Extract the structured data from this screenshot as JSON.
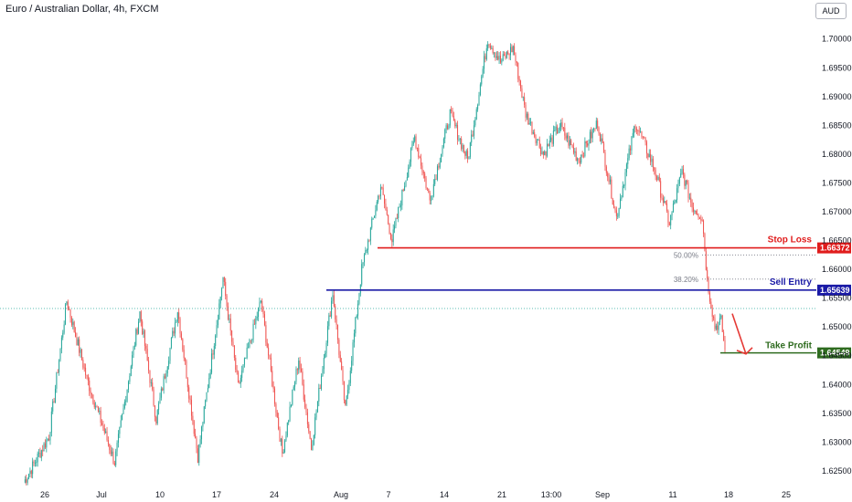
{
  "header": {
    "title": "Euro / Australian Dollar, 4h, FXCM",
    "currency_button": "AUD"
  },
  "colors": {
    "up": "#26a69a",
    "down": "#ef5350",
    "stop": "#e01c1c",
    "entry": "#1a1aa6",
    "target": "#2e6b1f",
    "arrow": "#e53935",
    "fib": "#787b86"
  },
  "chart_data": {
    "type": "candlestick",
    "ylim": [
      1.6215,
      1.7055
    ],
    "y_ticks": [
      "1.62500",
      "1.63000",
      "1.63500",
      "1.64000",
      "1.64500",
      "1.65000",
      "1.65500",
      "1.66000",
      "1.66500",
      "1.67000",
      "1.67500",
      "1.68000",
      "1.68500",
      "1.69000",
      "1.69500",
      "1.70000"
    ],
    "x_ticks": [
      "26",
      "Jul",
      "10",
      "17",
      "24",
      "Aug",
      "7",
      "14",
      "21",
      "13:00",
      "Sep",
      "11",
      "18",
      "25"
    ],
    "key_points": [
      {
        "i": 0,
        "p": 1.623
      },
      {
        "i": 20,
        "p": 1.631
      },
      {
        "i": 34,
        "p": 1.6545
      },
      {
        "i": 50,
        "p": 1.641
      },
      {
        "i": 72,
        "p": 1.6265
      },
      {
        "i": 92,
        "p": 1.6525
      },
      {
        "i": 105,
        "p": 1.634
      },
      {
        "i": 122,
        "p": 1.653
      },
      {
        "i": 138,
        "p": 1.6275
      },
      {
        "i": 158,
        "p": 1.6585
      },
      {
        "i": 170,
        "p": 1.6395
      },
      {
        "i": 188,
        "p": 1.6545
      },
      {
        "i": 205,
        "p": 1.628
      },
      {
        "i": 218,
        "p": 1.6445
      },
      {
        "i": 228,
        "p": 1.629
      },
      {
        "i": 245,
        "p": 1.656
      },
      {
        "i": 255,
        "p": 1.6355
      },
      {
        "i": 268,
        "p": 1.66
      },
      {
        "i": 283,
        "p": 1.6745
      },
      {
        "i": 292,
        "p": 1.665
      },
      {
        "i": 310,
        "p": 1.683
      },
      {
        "i": 322,
        "p": 1.672
      },
      {
        "i": 338,
        "p": 1.687
      },
      {
        "i": 352,
        "p": 1.679
      },
      {
        "i": 368,
        "p": 1.7
      },
      {
        "i": 378,
        "p": 1.696
      },
      {
        "i": 388,
        "p": 1.6985
      },
      {
        "i": 398,
        "p": 1.687
      },
      {
        "i": 412,
        "p": 1.68
      },
      {
        "i": 425,
        "p": 1.685
      },
      {
        "i": 440,
        "p": 1.679
      },
      {
        "i": 455,
        "p": 1.6855
      },
      {
        "i": 470,
        "p": 1.669
      },
      {
        "i": 485,
        "p": 1.6855
      },
      {
        "i": 500,
        "p": 1.6775
      },
      {
        "i": 512,
        "p": 1.668
      },
      {
        "i": 522,
        "p": 1.677
      },
      {
        "i": 530,
        "p": 1.671
      },
      {
        "i": 538,
        "p": 1.669
      },
      {
        "i": 542,
        "p": 1.658
      },
      {
        "i": 548,
        "p": 1.65
      },
      {
        "i": 553,
        "p": 1.651
      },
      {
        "i": 556,
        "p": 1.646
      }
    ],
    "levels": [
      {
        "label": "Stop Loss",
        "price_label": "1.66372",
        "price": 1.66372
      },
      {
        "label": "Sell Entry",
        "price_label": "1.65639",
        "price": 1.65639
      },
      {
        "label": "Take Profit",
        "price_label": "1.64549",
        "price": 1.64549
      }
    ],
    "fib": [
      {
        "label": "50.00%",
        "price": 1.6625
      },
      {
        "label": "38.20%",
        "price": 1.6583
      }
    ],
    "last_price_line": 1.6532
  }
}
